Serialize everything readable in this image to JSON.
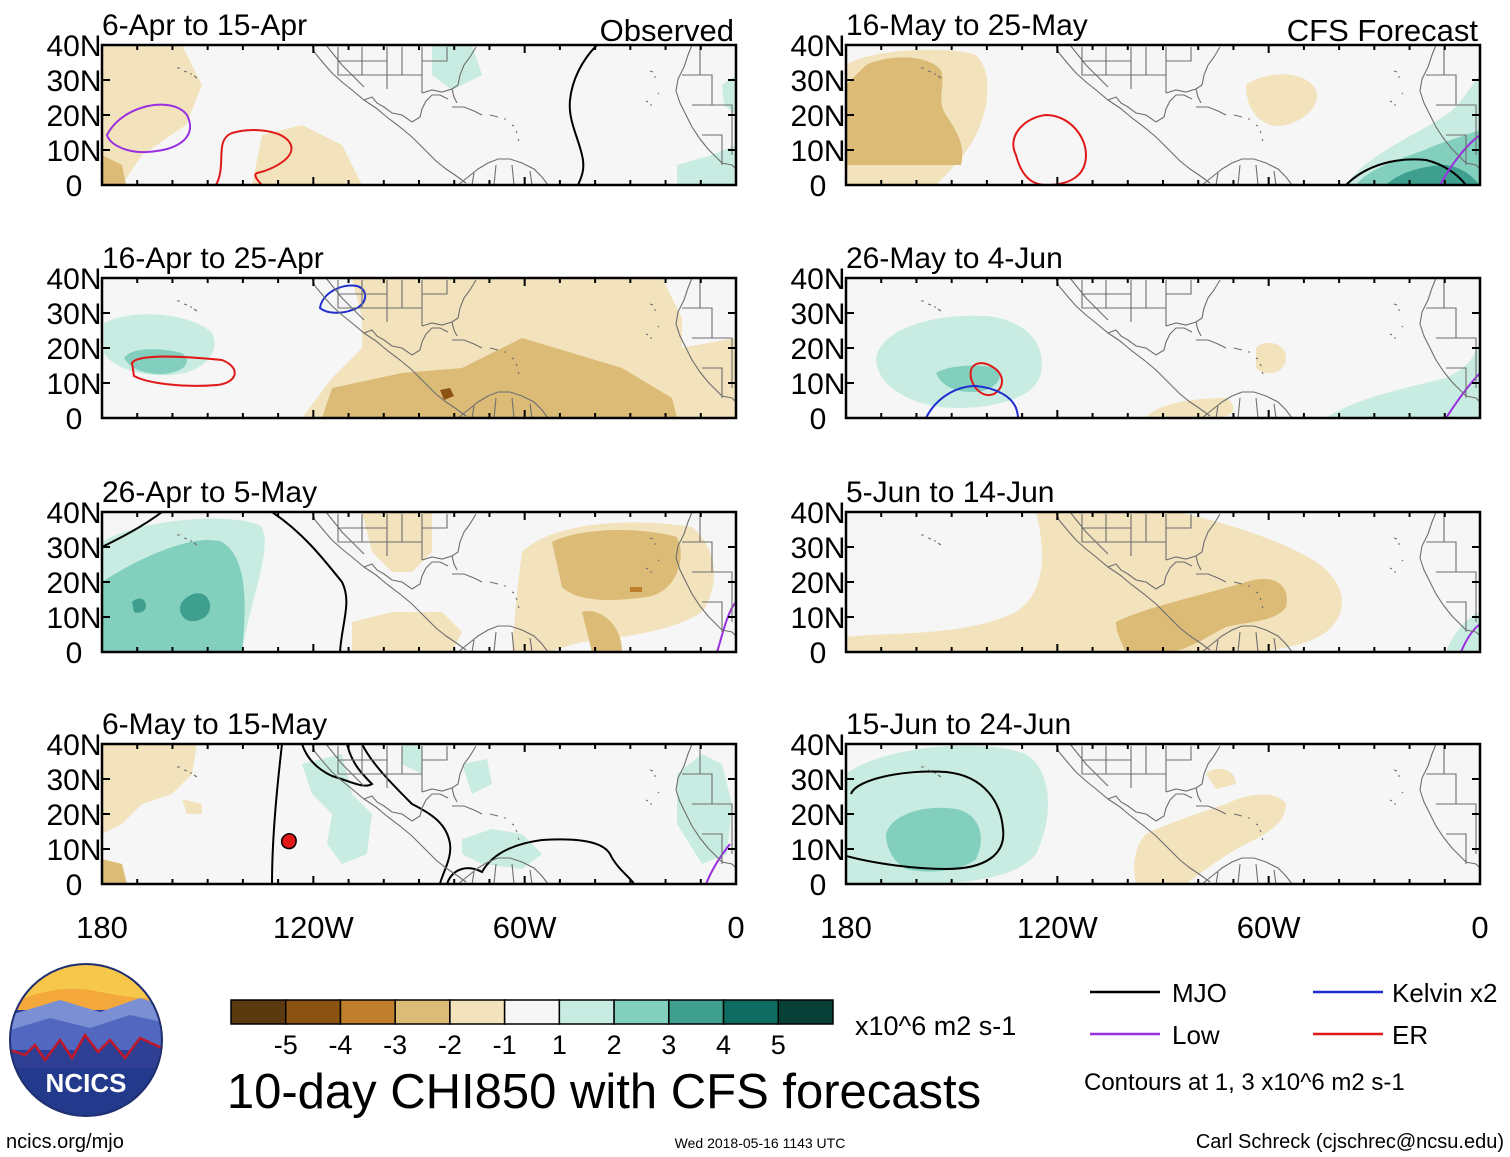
{
  "map": {
    "left_column_label": "Observed",
    "right_column_label": "CFS Forecast",
    "lat_labels": [
      "40N",
      "30N",
      "20N",
      "10N",
      "0"
    ],
    "lon_labels": [
      "180",
      "120W",
      "60W",
      "0"
    ],
    "panels": [
      {
        "period": "6-Apr to 15-Apr",
        "column": "observed"
      },
      {
        "period": "16-Apr to 25-Apr",
        "column": "observed"
      },
      {
        "period": "26-Apr to 5-May",
        "column": "observed"
      },
      {
        "period": "6-May to 15-May",
        "column": "observed"
      },
      {
        "period": "16-May to 25-May",
        "column": "forecast"
      },
      {
        "period": "26-May to 4-Jun",
        "column": "forecast"
      },
      {
        "period": "5-Jun to 14-Jun",
        "column": "forecast"
      },
      {
        "period": "15-Jun to 24-Jun",
        "column": "forecast"
      }
    ]
  },
  "colorbar": {
    "labels": [
      "-5",
      "-4",
      "-3",
      "-2",
      "-1",
      "1",
      "2",
      "3",
      "4",
      "5"
    ],
    "units": "x10^6 m2 s-1",
    "colors": [
      "#5b3a0f",
      "#8c5212",
      "#c07f2c",
      "#dcbb77",
      "#f2e3bd",
      "#f6f6f6",
      "#c9ece2",
      "#82cfbe",
      "#3f9f8f",
      "#0e6c61",
      "#083f36"
    ]
  },
  "legend": {
    "entries": [
      {
        "label": "MJO",
        "color": "#000000"
      },
      {
        "label": "Kelvin x2",
        "color": "#1f2fcf"
      },
      {
        "label": "Low",
        "color": "#9a30e0"
      },
      {
        "label": "ER",
        "color": "#e01818"
      }
    ],
    "contour_note": "Contours at 1, 3 x10^6 m2 s-1"
  },
  "title": "10-day CHI850 with CFS forecasts",
  "logo_text": "NCICS",
  "footer": {
    "url": "ncics.org/mjo",
    "timestamp": "Wed 2018-05-16 1143 UTC",
    "credit": "Carl Schreck (cjschrec@ncsu.edu)"
  }
}
